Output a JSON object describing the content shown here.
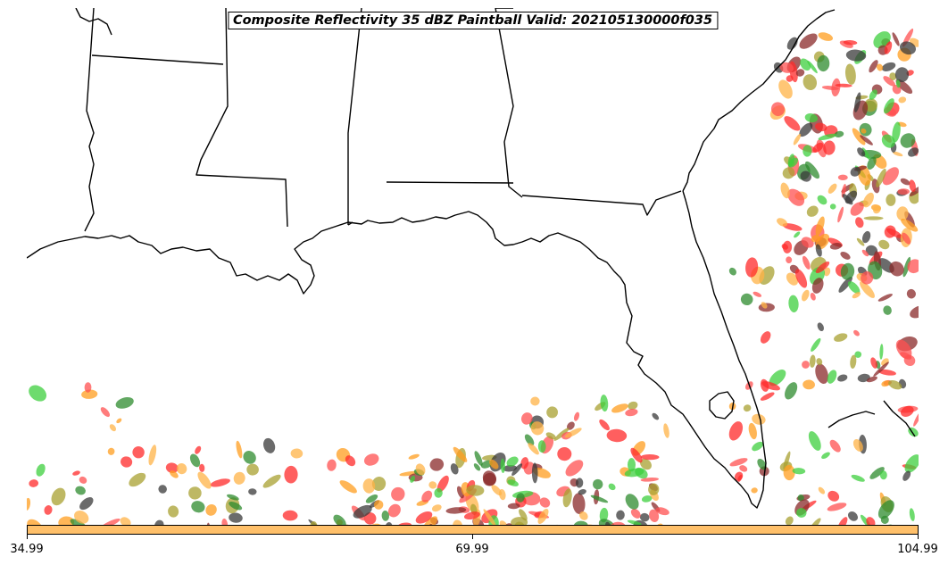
{
  "title": "Composite Reflectivity 35 dBZ Paintball Valid: 202105130000f035",
  "colorbar": {
    "ticks": [
      "34.99",
      "69.99",
      "104.99"
    ],
    "color": "#ffc06a"
  },
  "colors": {
    "coastline": "#000000",
    "background": "#ffffff",
    "paintball_palette": [
      "#ff2a2a",
      "#ff9e1f",
      "#3ecf3e",
      "#8a2a2a",
      "#a8a030",
      "#3a3a3a",
      "#2e8b2e",
      "#ff5050",
      "#ffb347"
    ]
  }
}
